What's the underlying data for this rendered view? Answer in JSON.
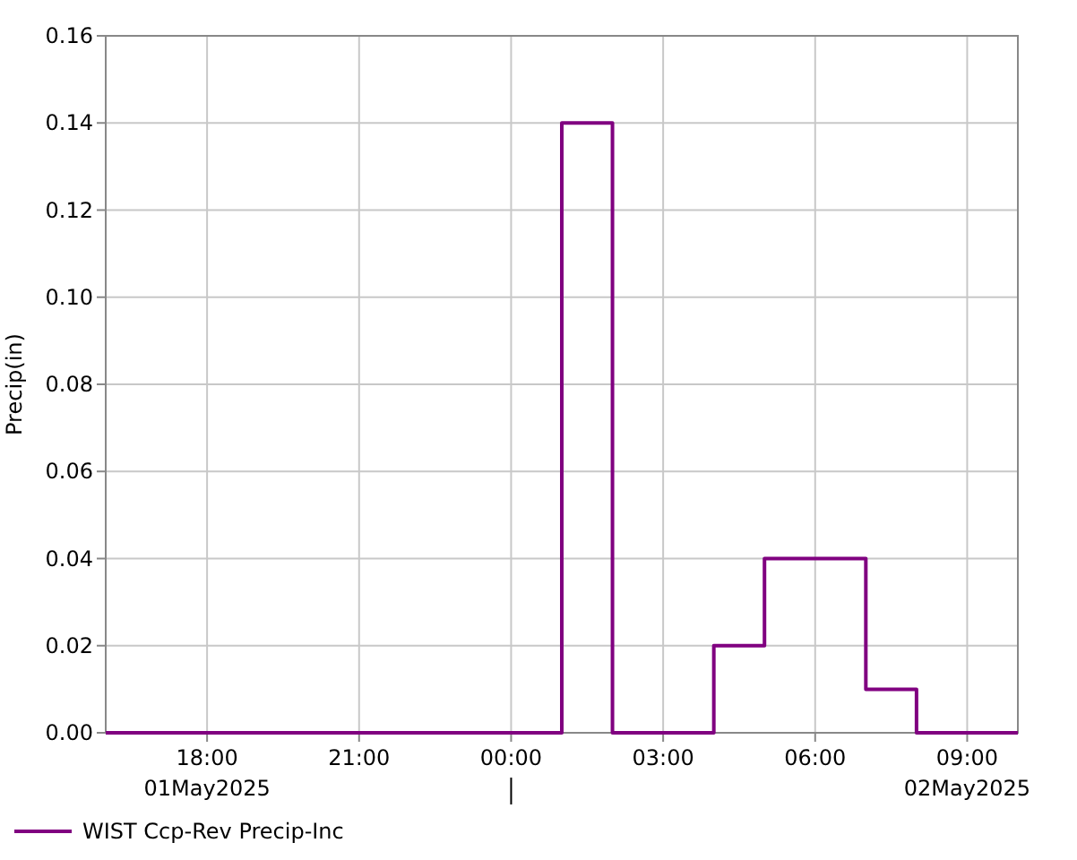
{
  "chart_data": {
    "type": "step",
    "ylabel": "Precip(in)",
    "x": [
      "2025-05-01T16:00",
      "2025-05-02T01:00",
      "2025-05-02T02:00",
      "2025-05-02T04:00",
      "2025-05-02T05:00",
      "2025-05-02T07:00",
      "2025-05-02T08:00",
      "2025-05-02T10:00"
    ],
    "series": [
      {
        "name": "WIST Ccp-Rev Precip-Inc",
        "color": "#800080",
        "values": [
          0,
          0.14,
          0,
          0.02,
          0.04,
          0.01,
          0,
          0
        ]
      }
    ],
    "xlim": [
      "2025-05-01T16:00",
      "2025-05-02T10:00"
    ],
    "xticks": [
      {
        "value": "2025-05-01T18:00",
        "label": "18:00"
      },
      {
        "value": "2025-05-01T21:00",
        "label": "21:00"
      },
      {
        "value": "2025-05-02T00:00",
        "label": "00:00"
      },
      {
        "value": "2025-05-02T03:00",
        "label": "03:00"
      },
      {
        "value": "2025-05-02T06:00",
        "label": "06:00"
      },
      {
        "value": "2025-05-02T09:00",
        "label": "09:00"
      }
    ],
    "ylim": [
      0,
      0.16
    ],
    "yticks": [
      {
        "value": 0,
        "label": "0.00"
      },
      {
        "value": 0.02,
        "label": "0.02"
      },
      {
        "value": 0.04,
        "label": "0.04"
      },
      {
        "value": 0.06,
        "label": "0.06"
      },
      {
        "value": 0.08,
        "label": "0.08"
      },
      {
        "value": 0.1,
        "label": "0.10"
      },
      {
        "value": 0.12,
        "label": "0.12"
      },
      {
        "value": 0.14,
        "label": "0.14"
      },
      {
        "value": 0.16,
        "label": "0.16"
      }
    ],
    "annotations": [
      "01May2025",
      "02May2025"
    ],
    "grid": true,
    "legend": "bottom"
  }
}
